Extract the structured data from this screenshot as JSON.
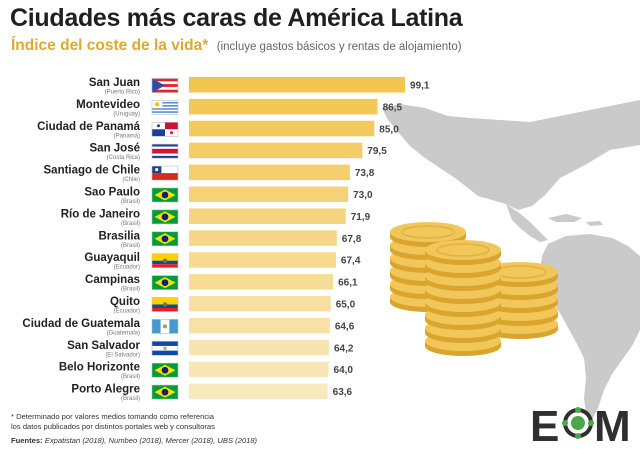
{
  "title": "Ciudades más caras de América Latina",
  "subtitle": "Índice del coste de la vida*",
  "subtitle_note": "(incluye gastos básicos y rentas de alojamiento)",
  "footnote_line1": "* Determinado por valores medios tomando como referencia",
  "footnote_line2": "los datos publicados por distintos portales web y consultoras",
  "sources_label": "Fuentes:",
  "sources_text": "Expatistan (2018), Numbeo (2018), Mercer (2018), UBS (2018)",
  "logo_text": "EOM",
  "colors": {
    "bar_top": "#f2c54f",
    "bar_bottom": "#f9e9bf",
    "accent": "#e0a92c",
    "map": "#c9c9c9",
    "logo": "#2f2f2f",
    "logo_green": "#4aa84a"
  },
  "icons": [
    "flag-puerto-rico-icon",
    "flag-uruguay-icon",
    "flag-panama-icon",
    "flag-costa-rica-icon",
    "flag-chile-icon",
    "flag-brazil-icon",
    "flag-ecuador-icon",
    "flag-guatemala-icon",
    "flag-el-salvador-icon",
    "coin-stack-icon",
    "americas-map-icon"
  ],
  "chart_data": {
    "type": "bar",
    "orientation": "horizontal",
    "categories": [
      "San Juan",
      "Montevideo",
      "Ciudad de Panamá",
      "San José",
      "Santiago de Chile",
      "Sao Paulo",
      "Río de Janeiro",
      "Brasilia",
      "Guayaquil",
      "Campinas",
      "Quito",
      "Ciudad de Guatemala",
      "San Salvador",
      "Belo Horizonte",
      "Porto Alegre"
    ],
    "countries": [
      "(Puerto Rico)",
      "(Uruguay)",
      "(Panamá)",
      "(Costa Rica)",
      "(Chile)",
      "(Brasil)",
      "(Brasil)",
      "(Brasil)",
      "(Ecuador)",
      "(Brasil)",
      "(Ecuador)",
      "(Guatemala)",
      "(El Salvador)",
      "(Brasil)",
      "(Brasil)"
    ],
    "flags": [
      "puerto-rico",
      "uruguay",
      "panama",
      "costa-rica",
      "chile",
      "brazil",
      "brazil",
      "brazil",
      "ecuador",
      "brazil",
      "ecuador",
      "guatemala",
      "el-salvador",
      "brazil",
      "brazil"
    ],
    "values": [
      99.1,
      86.5,
      85.0,
      79.5,
      73.8,
      73.0,
      71.9,
      67.8,
      67.4,
      66.1,
      65.0,
      64.6,
      64.2,
      64.0,
      63.6
    ],
    "value_labels": [
      "99,1",
      "86,5",
      "85,0",
      "79,5",
      "73,8",
      "73,0",
      "71,9",
      "67,8",
      "67,4",
      "66,1",
      "65,0",
      "64,6",
      "64,2",
      "64,0",
      "63,6"
    ],
    "xlim": [
      0,
      100
    ],
    "grid": false,
    "legend": "none"
  }
}
